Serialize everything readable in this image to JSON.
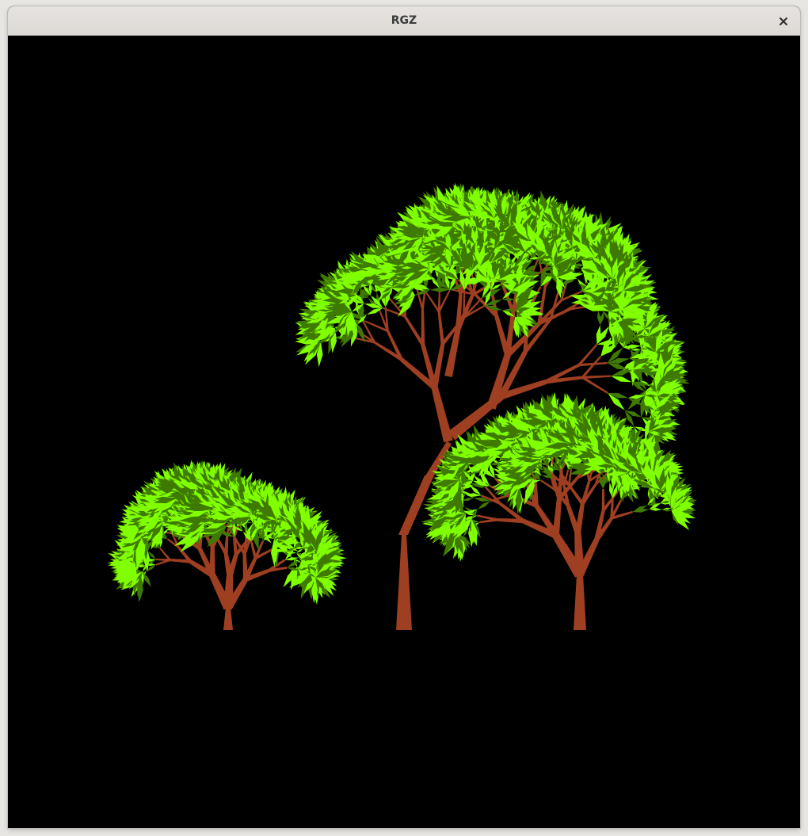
{
  "window": {
    "title": "RGZ",
    "close_icon": "close-icon"
  },
  "canvas": {
    "background": "#000000",
    "trunk_color": "#9e3f22",
    "leaf_dark_color": "#3f7a00",
    "leaf_light_color": "#80ff00",
    "trees": [
      "small-tree-left",
      "tall-tree-middle",
      "tree-right"
    ]
  }
}
